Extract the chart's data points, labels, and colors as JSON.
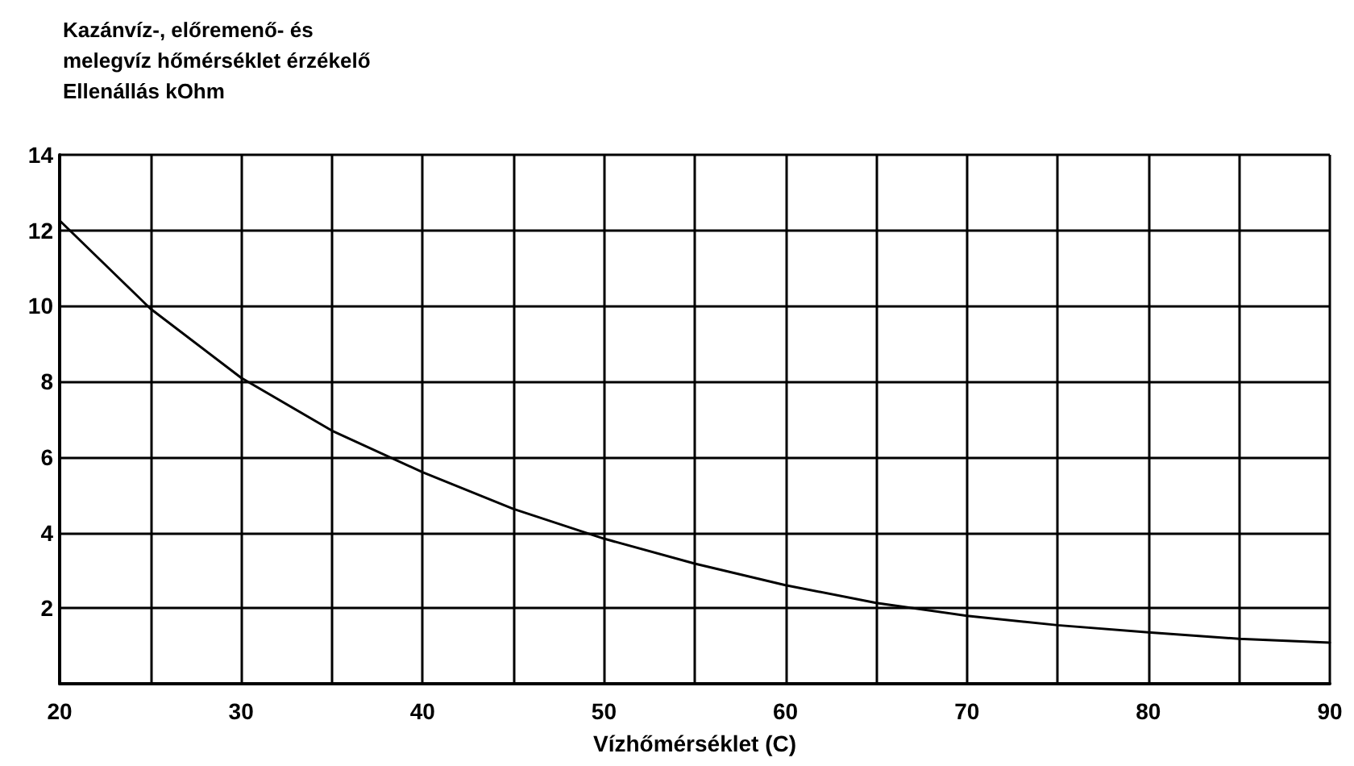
{
  "chart_data": {
    "type": "line",
    "title": "Kazánvíz-, előremenő- és\nmelegvíz hőmérséklet érzékelő\nEllenállás kOhm",
    "xlabel": "Vízhőmérséklet (C)",
    "x": [
      20,
      25,
      30,
      35,
      40,
      45,
      50,
      55,
      60,
      65,
      70,
      75,
      80,
      85,
      90
    ],
    "series": [
      {
        "color": "#000000",
        "values": [
          12.26,
          9.93,
          8.1,
          6.7,
          5.6,
          4.63,
          3.84,
          3.18,
          2.61,
          2.14,
          1.8,
          1.55,
          1.36,
          1.19,
          1.09
        ]
      }
    ],
    "xlim": [
      20,
      90
    ],
    "xticks": [
      20,
      {
        "value": 25,
        "label": null
      },
      30,
      {
        "value": 35,
        "label": null
      },
      40,
      {
        "value": 45,
        "label": null
      },
      50,
      {
        "value": 55,
        "label": null
      },
      60,
      {
        "value": 65,
        "label": null
      },
      70,
      {
        "value": 75,
        "label": null
      },
      80,
      {
        "value": 85,
        "label": null
      },
      90
    ],
    "ylim": [
      0,
      14
    ],
    "yticks": [
      {
        "value": 0,
        "label": null
      },
      2,
      4,
      6,
      8,
      10,
      12,
      14
    ],
    "grid": true,
    "marker": "none",
    "line_style": "solid"
  }
}
